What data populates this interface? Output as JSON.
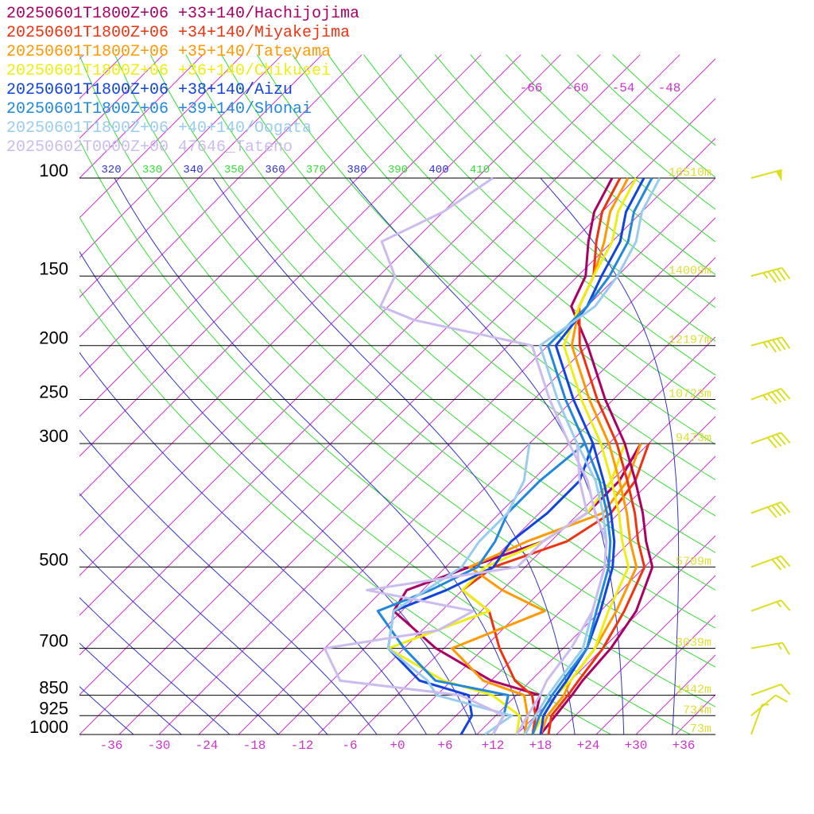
{
  "chart_data": {
    "type": "line",
    "subtype": "skew-t",
    "title": "",
    "xlabel": "",
    "ylabel": "",
    "legend_position": "top-left",
    "y_scale": "log-pressure",
    "pressure_range": [
      1000,
      100
    ],
    "temp_range": [
      -40,
      40
    ],
    "pressure_labels": [
      "100",
      "150",
      "200",
      "250",
      "300",
      "500",
      "700",
      "850",
      "925",
      "1000"
    ],
    "pressure_levels": [
      100,
      150,
      200,
      250,
      300,
      500,
      700,
      850,
      925,
      1000
    ],
    "temp_tick_labels": [
      "-36",
      "-30",
      "-24",
      "-18",
      "-12",
      "-6",
      "+0",
      "+6",
      "+12",
      "+18",
      "+24",
      "+30",
      "+36"
    ],
    "temp_ticks": [
      -36,
      -30,
      -24,
      -18,
      -12,
      -6,
      0,
      6,
      12,
      18,
      24,
      30,
      36
    ],
    "theta_labels": [
      "320",
      "330",
      "340",
      "350",
      "360",
      "370",
      "380",
      "390",
      "400",
      "410"
    ],
    "upper_temp_labels": [
      "-66",
      "-60",
      "-54",
      "-48"
    ],
    "height_labels": [
      {
        "p": 100,
        "text": "16510m"
      },
      {
        "p": 150,
        "text": "14009m"
      },
      {
        "p": 200,
        "text": "12197m"
      },
      {
        "p": 250,
        "text": "10723m"
      },
      {
        "p": 300,
        "text": "9473m"
      },
      {
        "p": 500,
        "text": "5709m"
      },
      {
        "p": 700,
        "text": "3039m"
      },
      {
        "p": 850,
        "text": "1442m"
      },
      {
        "p": 925,
        "text": "734m"
      },
      {
        "p": 1000,
        "text": "73m"
      }
    ],
    "colors": {
      "isotherm": "#cc33cc",
      "dry_adiabat": "#33dd33",
      "moist_adiabat": "#3333cc",
      "pressure_line": "#000000",
      "height_label": "#dddd33",
      "temp_label": "#cc33cc",
      "wind_barb": "#dddd22"
    },
    "series": [
      {
        "name": "20250601T1800Z+06 +33+140/Hachijojima",
        "color": "#aa0066",
        "points": [
          [
            1000,
            18
          ],
          [
            925,
            17.5
          ],
          [
            850,
            17
          ],
          [
            800,
            16.5
          ],
          [
            700,
            16
          ],
          [
            600,
            14.5
          ],
          [
            500,
            11
          ],
          [
            450,
            7
          ],
          [
            400,
            3
          ],
          [
            350,
            -2
          ],
          [
            300,
            -8
          ],
          [
            250,
            -16
          ],
          [
            200,
            -25
          ],
          [
            170,
            -32
          ],
          [
            150,
            -34
          ],
          [
            130,
            -38
          ],
          [
            115,
            -41
          ],
          [
            100,
            -43
          ]
        ]
      },
      {
        "name": "20250601T1800Z+06 +34+140/Miyakejima",
        "color": "#ee3311",
        "points": [
          [
            1000,
            19
          ],
          [
            925,
            17
          ],
          [
            850,
            16.5
          ],
          [
            800,
            16
          ],
          [
            700,
            15
          ],
          [
            600,
            13
          ],
          [
            500,
            10
          ],
          [
            450,
            6
          ],
          [
            400,
            2
          ],
          [
            350,
            -3
          ],
          [
            300,
            -9
          ],
          [
            250,
            -17
          ],
          [
            200,
            -26
          ],
          [
            170,
            -31
          ],
          [
            150,
            -33
          ],
          [
            130,
            -37
          ],
          [
            115,
            -40
          ],
          [
            100,
            -42
          ]
        ]
      },
      {
        "name": "20250601T1800Z+06 +35+140/Tateyama",
        "color": "#ff9900",
        "points": [
          [
            1000,
            18
          ],
          [
            925,
            16.5
          ],
          [
            850,
            16
          ],
          [
            800,
            15
          ],
          [
            700,
            14
          ],
          [
            600,
            12
          ],
          [
            500,
            9
          ],
          [
            450,
            5
          ],
          [
            400,
            1
          ],
          [
            350,
            -4
          ],
          [
            300,
            -10
          ],
          [
            250,
            -18
          ],
          [
            200,
            -27
          ],
          [
            170,
            -31
          ],
          [
            150,
            -33
          ],
          [
            130,
            -36
          ],
          [
            115,
            -39
          ],
          [
            100,
            -41
          ]
        ]
      },
      {
        "name": "20250601T1800Z+06 +36+140/Chikusei",
        "color": "#eeee11",
        "points": [
          [
            1000,
            17
          ],
          [
            925,
            16
          ],
          [
            850,
            15
          ],
          [
            800,
            15
          ],
          [
            700,
            14
          ],
          [
            600,
            11
          ],
          [
            500,
            8
          ],
          [
            450,
            4
          ],
          [
            400,
            0
          ],
          [
            350,
            -5
          ],
          [
            300,
            -11
          ],
          [
            250,
            -19
          ],
          [
            200,
            -28
          ],
          [
            170,
            -31
          ],
          [
            150,
            -33
          ],
          [
            130,
            -35
          ],
          [
            115,
            -38
          ],
          [
            100,
            -40
          ]
        ]
      },
      {
        "name": "20250601T1800Z+06 +38+140/Aizu",
        "color": "#1144dd",
        "points": [
          [
            1000,
            18
          ],
          [
            925,
            16
          ],
          [
            850,
            15
          ],
          [
            800,
            14.5
          ],
          [
            700,
            13
          ],
          [
            600,
            10
          ],
          [
            500,
            6
          ],
          [
            450,
            3
          ],
          [
            400,
            -1
          ],
          [
            350,
            -6
          ],
          [
            300,
            -12
          ],
          [
            250,
            -20
          ],
          [
            200,
            -29
          ],
          [
            170,
            -30
          ],
          [
            150,
            -32
          ],
          [
            130,
            -34
          ],
          [
            115,
            -37
          ],
          [
            100,
            -39
          ]
        ]
      },
      {
        "name": "20250601T1800Z+06 +39+140/Shonai",
        "color": "#2288dd",
        "points": [
          [
            1000,
            17
          ],
          [
            925,
            15.5
          ],
          [
            850,
            14.5
          ],
          [
            800,
            14
          ],
          [
            700,
            13
          ],
          [
            600,
            9.5
          ],
          [
            500,
            5.5
          ],
          [
            450,
            2.5
          ],
          [
            400,
            -1.5
          ],
          [
            350,
            -6.5
          ],
          [
            300,
            -13
          ],
          [
            250,
            -21
          ],
          [
            200,
            -30
          ],
          [
            170,
            -30
          ],
          [
            150,
            -31
          ],
          [
            130,
            -33
          ],
          [
            115,
            -36
          ],
          [
            100,
            -38
          ]
        ]
      },
      {
        "name": "20250601T1800Z+06 +40+140/Oogata",
        "color": "#99ccee",
        "points": [
          [
            1000,
            16
          ],
          [
            925,
            15
          ],
          [
            850,
            14
          ],
          [
            800,
            13.5
          ],
          [
            700,
            12.5
          ],
          [
            600,
            9
          ],
          [
            500,
            5
          ],
          [
            450,
            2
          ],
          [
            400,
            -2
          ],
          [
            350,
            -7
          ],
          [
            300,
            -14
          ],
          [
            250,
            -22
          ],
          [
            200,
            -31
          ],
          [
            170,
            -29
          ],
          [
            150,
            -30
          ],
          [
            130,
            -32
          ],
          [
            115,
            -35
          ],
          [
            100,
            -37
          ]
        ]
      },
      {
        "name": "20250602T0000Z+00 47646_Tateno",
        "color": "#ccbbee",
        "points": [
          [
            1000,
            15
          ],
          [
            925,
            14
          ],
          [
            850,
            13
          ],
          [
            800,
            12
          ],
          [
            700,
            11
          ],
          [
            600,
            9
          ],
          [
            500,
            5
          ],
          [
            450,
            2
          ],
          [
            400,
            -3
          ],
          [
            350,
            -8
          ],
          [
            300,
            -15
          ],
          [
            250,
            -23
          ],
          [
            200,
            -32
          ],
          [
            180,
            -50
          ],
          [
            170,
            -56
          ],
          [
            150,
            -58
          ],
          [
            130,
            -64
          ],
          [
            115,
            -60
          ],
          [
            100,
            -58
          ]
        ]
      }
    ],
    "dewpoints": [
      {
        "color": "#aa0066",
        "points": [
          [
            1000,
            16
          ],
          [
            925,
            15
          ],
          [
            850,
            13
          ],
          [
            800,
            5
          ],
          [
            700,
            -6
          ],
          [
            600,
            -16
          ],
          [
            550,
            -17
          ],
          [
            500,
            -12
          ],
          [
            450,
            -6
          ],
          [
            400,
            -4
          ],
          [
            350,
            -4
          ],
          [
            300,
            -6
          ]
        ]
      },
      {
        "color": "#ee3311",
        "points": [
          [
            1000,
            17
          ],
          [
            925,
            15
          ],
          [
            850,
            12
          ],
          [
            800,
            8
          ],
          [
            700,
            2
          ],
          [
            600,
            -4
          ],
          [
            550,
            -10
          ],
          [
            500,
            -9
          ],
          [
            450,
            -3
          ],
          [
            400,
            -1
          ],
          [
            350,
            -2
          ],
          [
            300,
            -5
          ]
        ]
      },
      {
        "color": "#ff9900",
        "points": [
          [
            1000,
            16
          ],
          [
            925,
            14
          ],
          [
            850,
            11
          ],
          [
            800,
            4
          ],
          [
            700,
            -4
          ],
          [
            600,
            3
          ],
          [
            550,
            -5
          ],
          [
            500,
            -12
          ],
          [
            450,
            -8
          ],
          [
            400,
            -2
          ],
          [
            350,
            -3
          ],
          [
            300,
            -6
          ]
        ]
      },
      {
        "color": "#eeee11",
        "points": [
          [
            1000,
            15
          ],
          [
            925,
            13
          ],
          [
            850,
            7
          ],
          [
            800,
            -1
          ],
          [
            700,
            -12
          ],
          [
            600,
            -4
          ],
          [
            550,
            -10
          ],
          [
            500,
            -10
          ],
          [
            450,
            -6
          ],
          [
            400,
            -4
          ],
          [
            350,
            -5
          ],
          [
            300,
            -8
          ]
        ]
      },
      {
        "color": "#1144dd",
        "points": [
          [
            1000,
            8
          ],
          [
            925,
            7
          ],
          [
            850,
            4
          ],
          [
            800,
            -4
          ],
          [
            700,
            -12
          ],
          [
            600,
            -16
          ],
          [
            550,
            -12
          ],
          [
            500,
            -9
          ],
          [
            450,
            -10
          ],
          [
            400,
            -9
          ],
          [
            350,
            -9
          ],
          [
            300,
            -12
          ]
        ]
      },
      {
        "color": "#2288dd",
        "points": [
          [
            1000,
            12
          ],
          [
            925,
            11
          ],
          [
            850,
            9
          ],
          [
            800,
            -2
          ],
          [
            700,
            -10
          ],
          [
            600,
            -18
          ],
          [
            550,
            -14
          ],
          [
            500,
            -11
          ],
          [
            450,
            -12
          ],
          [
            400,
            -14
          ],
          [
            350,
            -14
          ],
          [
            300,
            -13
          ]
        ]
      },
      {
        "color": "#99ccee",
        "points": [
          [
            1000,
            11
          ],
          [
            925,
            12
          ],
          [
            850,
            0
          ],
          [
            800,
            -3
          ],
          [
            700,
            -12
          ],
          [
            600,
            -16
          ],
          [
            500,
            -13
          ],
          [
            450,
            -14
          ],
          [
            400,
            -14
          ],
          [
            350,
            -16
          ],
          [
            300,
            -20
          ]
        ]
      },
      {
        "color": "#ccbbee",
        "points": [
          [
            1000,
            12
          ],
          [
            925,
            11
          ],
          [
            850,
            3
          ],
          [
            800,
            -14
          ],
          [
            700,
            -20
          ],
          [
            650,
            -8
          ],
          [
            600,
            -6
          ],
          [
            550,
            -22
          ],
          [
            500,
            -6
          ],
          [
            450,
            -6
          ],
          [
            400,
            -4
          ],
          [
            350,
            -9
          ],
          [
            300,
            -14
          ]
        ]
      }
    ],
    "wind_barbs": [
      {
        "p": 1000,
        "dir": 200,
        "spd": 5
      },
      {
        "p": 925,
        "dir": 230,
        "spd": 10
      },
      {
        "p": 850,
        "dir": 250,
        "spd": 10
      },
      {
        "p": 700,
        "dir": 260,
        "spd": 15
      },
      {
        "p": 600,
        "dir": 250,
        "spd": 15
      },
      {
        "p": 500,
        "dir": 250,
        "spd": 30
      },
      {
        "p": 400,
        "dir": 250,
        "spd": 40
      },
      {
        "p": 300,
        "dir": 250,
        "spd": 40
      },
      {
        "p": 250,
        "dir": 250,
        "spd": 45
      },
      {
        "p": 200,
        "dir": 255,
        "spd": 45
      },
      {
        "p": 150,
        "dir": 255,
        "spd": 45
      },
      {
        "p": 100,
        "dir": 255,
        "spd": 50
      }
    ]
  }
}
